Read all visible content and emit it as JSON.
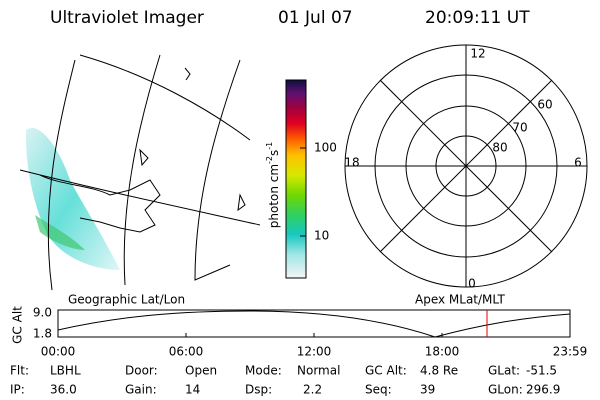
{
  "header": {
    "title": "Ultraviolet Imager",
    "date": "01 Jul 07",
    "time": "20:09:11 UT"
  },
  "colorbar": {
    "ticks": [
      "100",
      "10"
    ],
    "unit": {
      "base": "photon cm",
      "exp1": "-2",
      "mid": "s",
      "exp2": "-1"
    }
  },
  "polar": {
    "mlt": [
      "12",
      "18",
      "6",
      "0"
    ],
    "mlat": [
      "60",
      "70",
      "80"
    ]
  },
  "orbit": {
    "left_title": "Geographic Lat/Lon",
    "right_title": "Apex MLat/MLT",
    "axis_label": "GC Alt",
    "alt_ticks": [
      "9.0",
      "1.8"
    ],
    "time_ticks": [
      "00:00",
      "06:00",
      "12:00",
      "18:00",
      "23:59"
    ]
  },
  "footer": {
    "rows": [
      [
        {
          "label": "Flt:",
          "value": "LBHL"
        },
        {
          "label": "Door:",
          "value": "Open"
        },
        {
          "label": "Mode:",
          "value": "Normal"
        },
        {
          "label": "GC Alt:",
          "value": "4.8 Re"
        },
        {
          "label": "GLat:",
          "value": "-51.5"
        }
      ],
      [
        {
          "label": "IP:",
          "value": "36.0"
        },
        {
          "label": "Gain:",
          "value": "14"
        },
        {
          "label": "Dsp:",
          "value": "2.2"
        },
        {
          "label": "Seq:",
          "value": "39"
        },
        {
          "label": "GLon:",
          "value": "296.9"
        }
      ]
    ]
  }
}
